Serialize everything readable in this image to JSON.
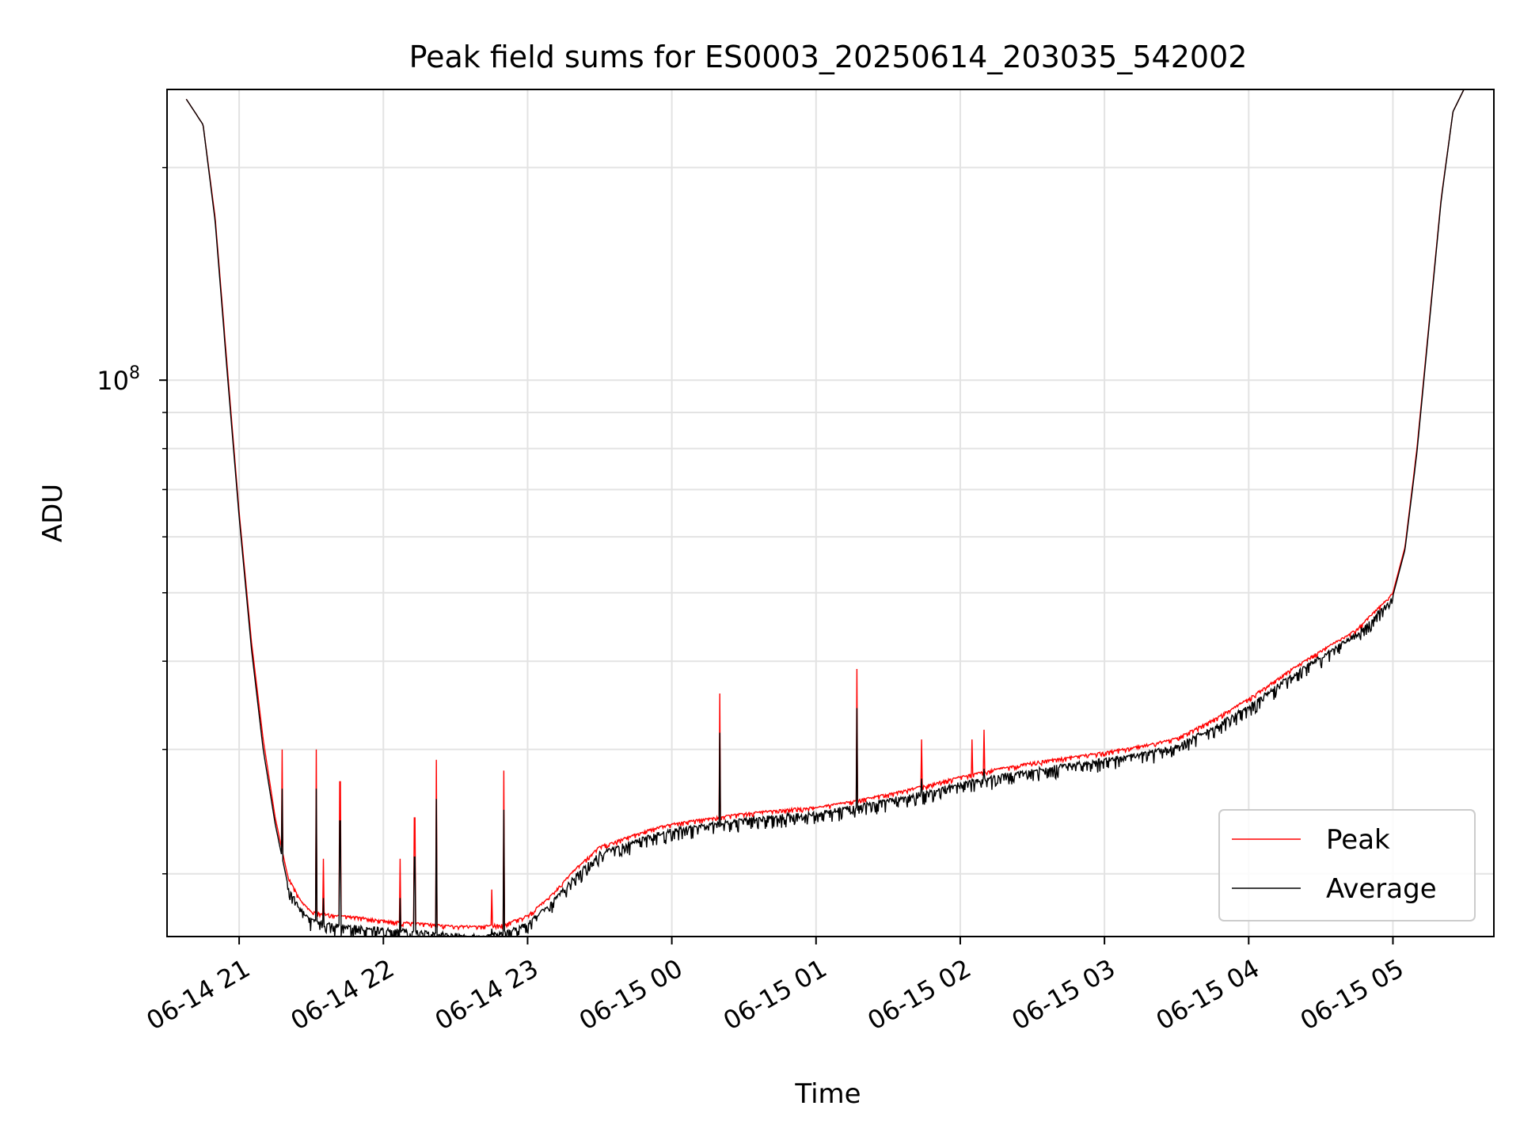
{
  "chart_data": {
    "type": "line",
    "title": "Peak field sums for ES0003_20250614_203035_542002",
    "xlabel": "Time",
    "ylabel": "ADU",
    "y_scale": "log",
    "grid": true,
    "legend_position": "lower-right",
    "x_tick_labels": [
      "06-14 21",
      "06-14 22",
      "06-14 23",
      "06-15 00",
      "06-15 01",
      "06-15 02",
      "06-15 03",
      "06-15 04",
      "06-15 05"
    ],
    "y_tick_labels": [
      {
        "base": "10",
        "exp": "8"
      }
    ],
    "series": [
      {
        "name": "Peak",
        "color": "#ff0000",
        "x": [
          "06-14 20:38",
          "06-14 20:45",
          "06-14 20:50",
          "06-14 20:55",
          "06-14 21:00",
          "06-14 21:05",
          "06-14 21:10",
          "06-14 21:15",
          "06-14 21:20",
          "06-14 21:25",
          "06-14 21:30",
          "06-14 21:40",
          "06-14 21:50",
          "06-14 22:00",
          "06-14 22:10",
          "06-14 22:20",
          "06-14 22:30",
          "06-14 22:40",
          "06-14 22:50",
          "06-14 23:00",
          "06-14 23:10",
          "06-14 23:20",
          "06-14 23:30",
          "06-14 23:40",
          "06-14 23:50",
          "06-15 00:00",
          "06-15 00:15",
          "06-15 00:30",
          "06-15 00:45",
          "06-15 01:00",
          "06-15 01:15",
          "06-15 01:30",
          "06-15 01:45",
          "06-15 02:00",
          "06-15 02:15",
          "06-15 02:30",
          "06-15 02:45",
          "06-15 03:00",
          "06-15 03:15",
          "06-15 03:30",
          "06-15 03:45",
          "06-15 04:00",
          "06-15 04:15",
          "06-15 04:30",
          "06-15 04:45",
          "06-15 05:00",
          "06-15 05:05",
          "06-15 05:10",
          "06-15 05:15",
          "06-15 05:20",
          "06-15 05:25",
          "06-15 05:30"
        ],
        "values": [
          250000000,
          230000000,
          170000000,
          105000000,
          65000000,
          43000000,
          31000000,
          24000000,
          20000000,
          18500000,
          17700000,
          17500000,
          17400000,
          17200000,
          17100000,
          17000000,
          16900000,
          16900000,
          17000000,
          17500000,
          18700000,
          20400000,
          21900000,
          22500000,
          23100000,
          23600000,
          24000000,
          24400000,
          24700000,
          24900000,
          25400000,
          26000000,
          26700000,
          27500000,
          28200000,
          28800000,
          29300000,
          29800000,
          30400000,
          31200000,
          33100000,
          35500000,
          38500000,
          41500000,
          44500000,
          50000000,
          58000000,
          80000000,
          120000000,
          180000000,
          240000000,
          260000000
        ]
      },
      {
        "name": "Average",
        "color": "#000000",
        "x": [
          "06-14 20:38",
          "06-14 20:45",
          "06-14 20:50",
          "06-14 20:55",
          "06-14 21:00",
          "06-14 21:05",
          "06-14 21:10",
          "06-14 21:15",
          "06-14 21:20",
          "06-14 21:25",
          "06-14 21:30",
          "06-14 21:40",
          "06-14 21:50",
          "06-14 22:00",
          "06-14 22:10",
          "06-14 22:20",
          "06-14 22:30",
          "06-14 22:40",
          "06-14 22:50",
          "06-14 23:00",
          "06-14 23:10",
          "06-14 23:20",
          "06-14 23:30",
          "06-14 23:40",
          "06-14 23:50",
          "06-15 00:00",
          "06-15 00:15",
          "06-15 00:30",
          "06-15 00:45",
          "06-15 01:00",
          "06-15 01:15",
          "06-15 01:30",
          "06-15 01:45",
          "06-15 02:00",
          "06-15 02:15",
          "06-15 02:30",
          "06-15 02:45",
          "06-15 03:00",
          "06-15 03:15",
          "06-15 03:30",
          "06-15 03:45",
          "06-15 04:00",
          "06-15 04:15",
          "06-15 04:30",
          "06-15 04:45",
          "06-15 05:00",
          "06-15 05:05",
          "06-15 05:10",
          "06-15 05:15",
          "06-15 05:20",
          "06-15 05:25",
          "06-15 05:30"
        ],
        "values": [
          250000000,
          230000000,
          168000000,
          103000000,
          64000000,
          42000000,
          30000000,
          23500000,
          19500000,
          18000000,
          17300000,
          17000000,
          16900000,
          16800000,
          16700000,
          16600000,
          16500000,
          16400000,
          16600000,
          17100000,
          18300000,
          20000000,
          21500000,
          22100000,
          22700000,
          23200000,
          23600000,
          24000000,
          24300000,
          24500000,
          25000000,
          25600000,
          26200000,
          27000000,
          27600000,
          28200000,
          28700000,
          29200000,
          29700000,
          30500000,
          32400000,
          34800000,
          37800000,
          40800000,
          44000000,
          49500000,
          57500000,
          79000000,
          119000000,
          179000000,
          240000000,
          260000000
        ]
      }
    ]
  }
}
